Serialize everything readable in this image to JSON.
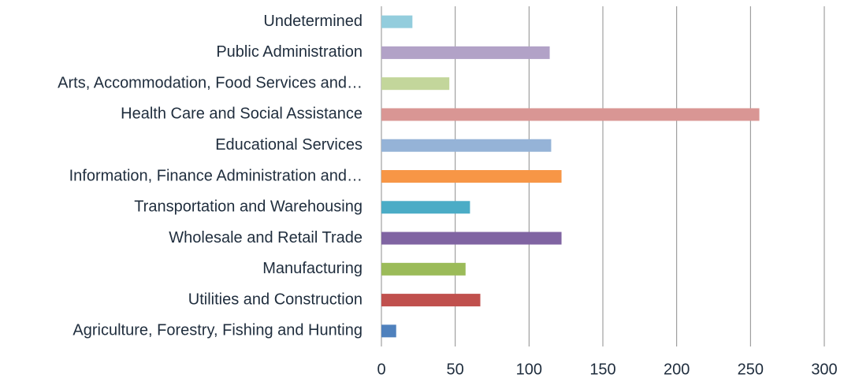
{
  "chart_data": {
    "type": "hbar",
    "categories": [
      "Agriculture, Forestry, Fishing and Hunting",
      "Utilities and Construction",
      "Manufacturing",
      "Wholesale and Retail Trade",
      "Transportation and Warehousing",
      "Information, Finance Administration and…",
      "Educational Services",
      "Health Care and Social Assistance",
      "Arts, Accommodation, Food Services and…",
      "Public Administration",
      "Undetermined"
    ],
    "values": [
      10,
      67,
      57,
      122,
      60,
      122,
      115,
      256,
      46,
      114,
      21
    ],
    "colors": [
      "#4f81bd",
      "#c0504d",
      "#9bbb59",
      "#8064a2",
      "#4bacc6",
      "#f79646",
      "#95b3d7",
      "#d99694",
      "#c3d69b",
      "#b2a2c7",
      "#93cddd"
    ],
    "xlim": [
      0,
      300
    ],
    "xticks": [
      0,
      50,
      100,
      150,
      200,
      250,
      300
    ],
    "grid": true
  }
}
